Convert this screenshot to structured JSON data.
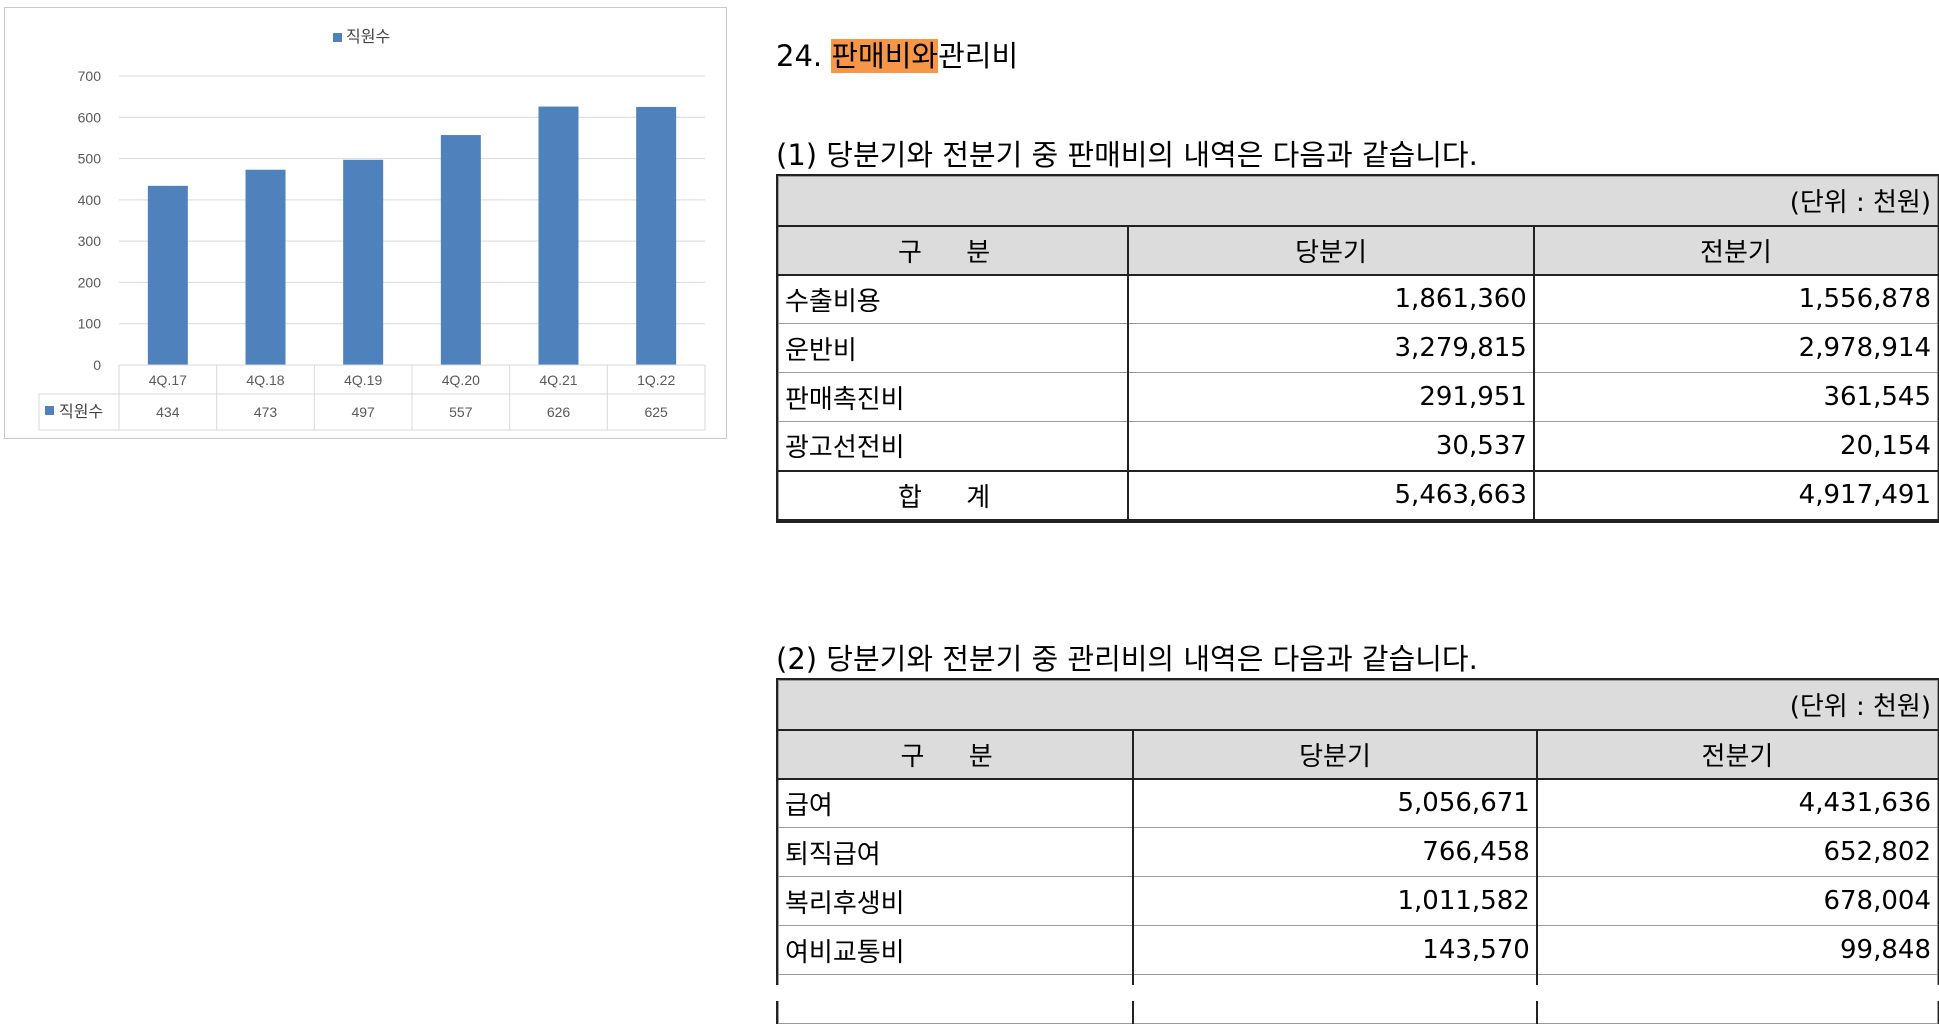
{
  "chart_data": {
    "type": "bar",
    "legend": "직원수",
    "legend_position": "top",
    "categories": [
      "4Q.17",
      "4Q.18",
      "4Q.19",
      "4Q.20",
      "4Q.21",
      "1Q.22"
    ],
    "series": [
      {
        "name": "직원수",
        "values": [
          434,
          473,
          497,
          557,
          626,
          625
        ]
      }
    ],
    "ylim": [
      0,
      700
    ],
    "yticks": [
      "700",
      "600",
      "500",
      "400",
      "300",
      "200",
      "100",
      "0"
    ],
    "grid": true,
    "data_table": true,
    "color": "#4f81bd"
  },
  "section": {
    "number": "24.",
    "title_highlight": "판매비와",
    "title_rest": "관리비"
  },
  "selling": {
    "caption": "(1) 당분기와 전분기 중 판매비의 내역은 다음과 같습니다.",
    "unit": "(단위 : 천원)",
    "headers": [
      "구 분",
      "당분기",
      "전분기"
    ],
    "rows": [
      {
        "label": "수출비용",
        "current": "1,861,360",
        "previous": "1,556,878"
      },
      {
        "label": "운반비",
        "current": "3,279,815",
        "previous": "2,978,914"
      },
      {
        "label": "판매촉진비",
        "current": "291,951",
        "previous": "361,545"
      },
      {
        "label": "광고선전비",
        "current": "30,537",
        "previous": "20,154"
      }
    ],
    "total": {
      "label": "합 계",
      "current": "5,463,663",
      "previous": "4,917,491"
    }
  },
  "admin": {
    "caption": "(2) 당분기와 전분기 중 관리비의 내역은 다음과 같습니다.",
    "unit": "(단위 : 천원)",
    "headers": [
      "구 분",
      "당분기",
      "전분기"
    ],
    "rows": [
      {
        "label": "급여",
        "current": "5,056,671",
        "previous": "4,431,636"
      },
      {
        "label": "퇴직급여",
        "current": "766,458",
        "previous": "652,802"
      },
      {
        "label": "복리후생비",
        "current": "1,011,582",
        "previous": "678,004"
      },
      {
        "label": "여비교통비",
        "current": "143,570",
        "previous": "99,848"
      }
    ]
  }
}
